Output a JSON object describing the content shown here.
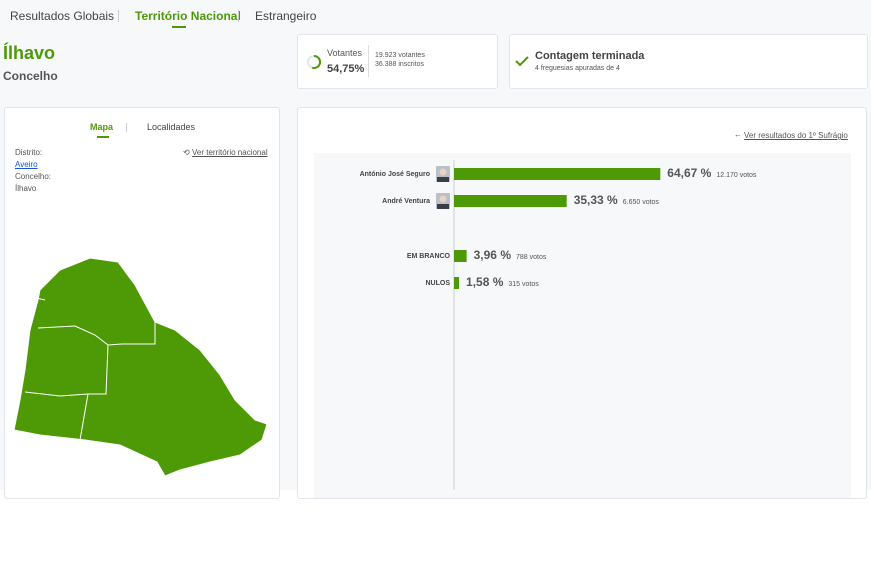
{
  "tabs": [
    "Resultados Globais",
    "Território Nacional",
    "Estrangeiro"
  ],
  "header": {
    "title": "Ílhavo",
    "subtitle": "Concelho"
  },
  "turnout": {
    "label": "Votantes",
    "percent": "54,75%",
    "voters": "19.923 votantes",
    "registered": "36.388 inscritos"
  },
  "count": {
    "title": "Contagem terminada",
    "detail": "4 freguesias apuradas de 4"
  },
  "map_panel": {
    "tabs": [
      "Mapa",
      "Localidades"
    ],
    "reset_link": "Ver território nacional",
    "district_label": "Distrito:",
    "district": "Aveiro",
    "municipality_label": "Concelho:",
    "municipality": "Ílhavo"
  },
  "results_link": "Ver resultados do 1º Sufrágio",
  "chart_data": {
    "type": "bar",
    "orientation": "horizontal",
    "color": "#4e9a06",
    "categories": [
      "António José Seguro",
      "André Ventura",
      "EM BRANCO",
      "NULOS"
    ],
    "values": [
      64.67,
      35.33,
      3.96,
      1.58
    ],
    "value_labels": [
      "64,67 %",
      "35,33 %",
      "3,96 %",
      "1,58 %"
    ],
    "votes_labels": [
      "12.170 votos",
      "6.650 votos",
      "788 votos",
      "315 votos"
    ]
  }
}
